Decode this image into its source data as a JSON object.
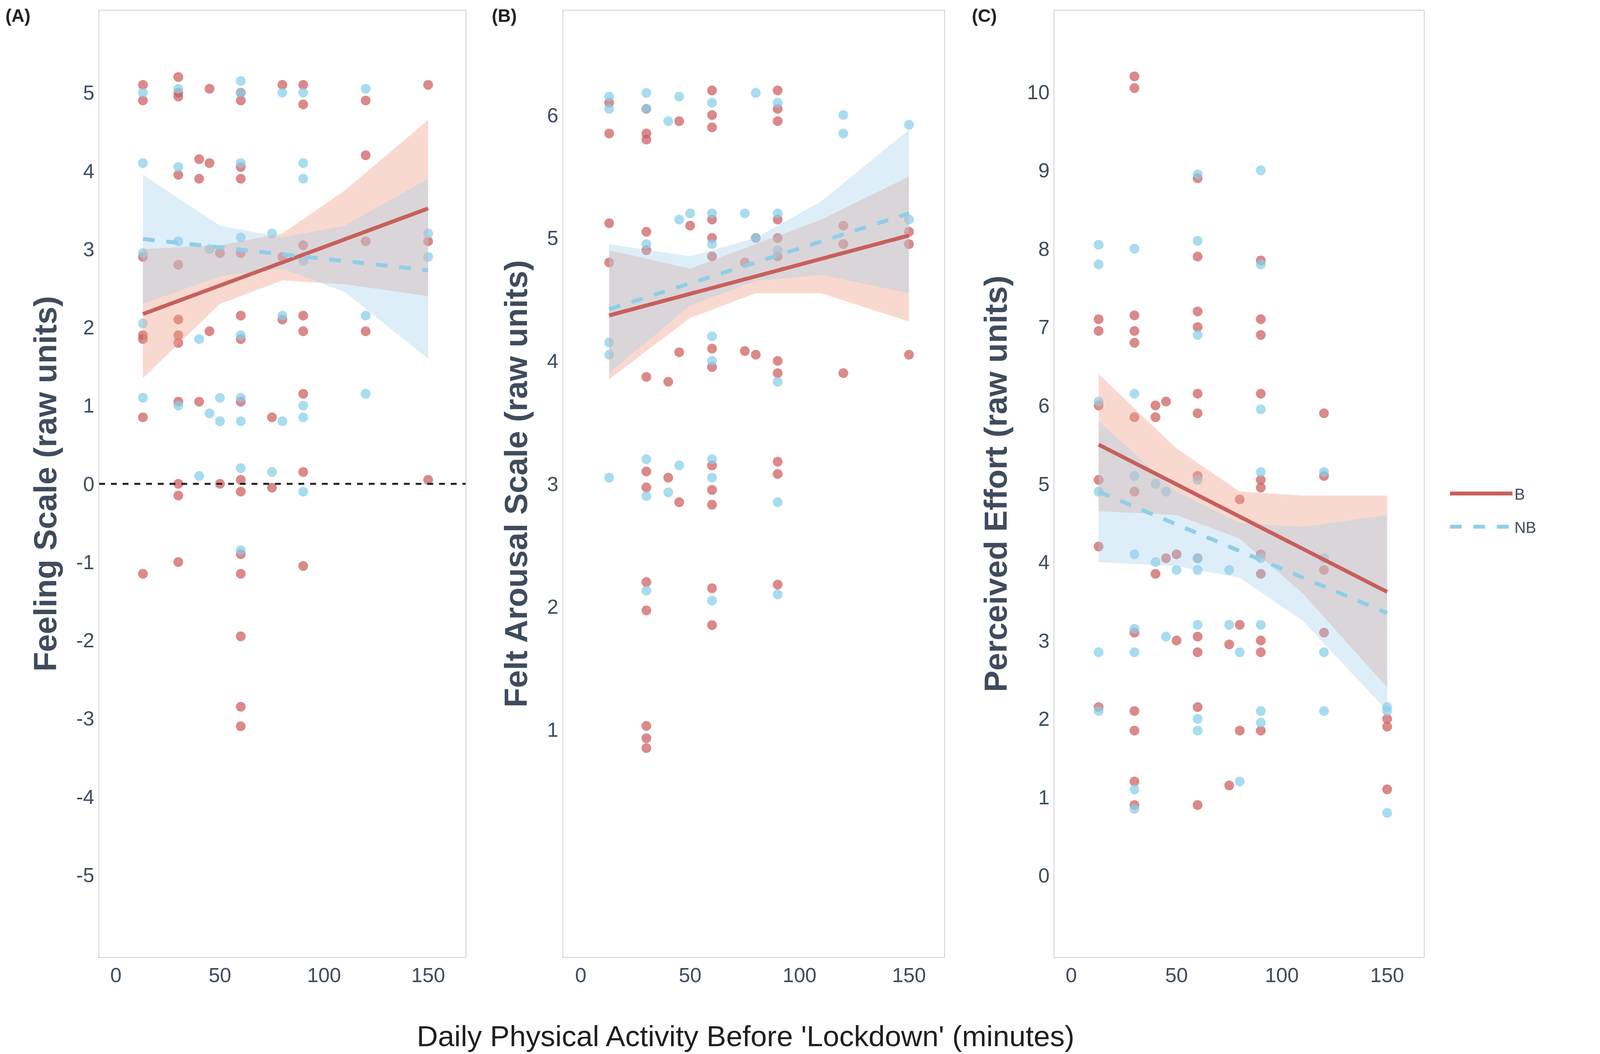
{
  "chart_data": [
    {
      "type": "scatter",
      "title": "(A)",
      "ylabel": "Feeling Scale (raw units)",
      "xlim": [
        -8,
        168
      ],
      "ylim": [
        -6.05,
        6.05
      ],
      "xticks": [
        0,
        50,
        100,
        150
      ],
      "yticks": [
        -5,
        -4,
        -3,
        -2,
        -1,
        0,
        1,
        2,
        3,
        4,
        5
      ],
      "grid": false,
      "reference_line": {
        "y": 0
      },
      "series": [
        {
          "name": "B",
          "color": "#cd5c5c",
          "line_style": "solid",
          "x": [
            13,
            13,
            13,
            13,
            13,
            13,
            13,
            30,
            30,
            30,
            30,
            30,
            30,
            30,
            30,
            30,
            30,
            30,
            30,
            40,
            40,
            40,
            45,
            45,
            45,
            50,
            50,
            60,
            60,
            60,
            60,
            60,
            60,
            60,
            60,
            60,
            60,
            60,
            60,
            60,
            60,
            60,
            75,
            75,
            80,
            80,
            80,
            90,
            90,
            90,
            90,
            90,
            90,
            90,
            90,
            120,
            120,
            120,
            120,
            150,
            150,
            150
          ],
          "y": [
            5.1,
            4.9,
            2.9,
            1.9,
            1.85,
            0.85,
            -1.15,
            5.2,
            5.0,
            4.95,
            3.95,
            2.8,
            2.1,
            1.9,
            1.8,
            1.05,
            0,
            -0.15,
            -1,
            4.15,
            3.9,
            1.05,
            5.05,
            4.1,
            1.95,
            2.95,
            0,
            5.0,
            4.9,
            4.05,
            3.9,
            2.95,
            2.15,
            1.85,
            1.05,
            0.05,
            -0.1,
            -0.9,
            -1.15,
            -1.95,
            -2.85,
            -3.1,
            -0.05,
            0.85,
            5.1,
            2.9,
            2.1,
            5.1,
            4.85,
            3.05,
            2.15,
            1.95,
            1.15,
            0.15,
            -1.05,
            4.9,
            4.2,
            3.1,
            1.95,
            5.1,
            3.1,
            0.05
          ],
          "fit": {
            "x": [
              13,
              150
            ],
            "y": [
              2.17,
              3.52
            ]
          },
          "ci": {
            "x": [
              13,
              50,
              80,
              110,
              150
            ],
            "lower": [
              1.35,
              2.3,
              2.6,
              2.55,
              2.4
            ],
            "upper": [
              3.0,
              3.05,
              3.2,
              3.75,
              4.65
            ]
          }
        },
        {
          "name": "NB",
          "color": "#87ceeb",
          "line_style": "dashed",
          "x": [
            13,
            13,
            13,
            13,
            13,
            30,
            30,
            30,
            30,
            40,
            40,
            45,
            45,
            50,
            50,
            60,
            60,
            60,
            60,
            60,
            60,
            60,
            60,
            60,
            75,
            75,
            80,
            80,
            80,
            90,
            90,
            90,
            90,
            90,
            90,
            90,
            120,
            120,
            120,
            150,
            150
          ],
          "y": [
            5.0,
            4.1,
            2.95,
            2.05,
            1.1,
            5.05,
            4.05,
            3.1,
            1.0,
            0.1,
            1.85,
            3.0,
            0.9,
            1.1,
            0.8,
            5.15,
            5.0,
            4.1,
            3.15,
            1.9,
            1.1,
            0.8,
            0.2,
            -0.85,
            3.2,
            0.15,
            5.0,
            2.15,
            0.8,
            5.0,
            4.1,
            3.9,
            2.85,
            1.0,
            0.85,
            -0.1,
            5.05,
            2.15,
            1.15,
            3.2,
            2.9
          ],
          "fit": {
            "x": [
              13,
              150
            ],
            "y": [
              3.13,
              2.73
            ]
          },
          "ci": {
            "x": [
              13,
              50,
              80,
              110,
              150
            ],
            "lower": [
              2.3,
              2.65,
              2.75,
              2.45,
              1.6
            ],
            "upper": [
              3.95,
              3.3,
              3.15,
              3.3,
              3.9
            ]
          }
        }
      ]
    },
    {
      "type": "scatter",
      "title": "(B)",
      "ylabel": "Felt Arousal Scale (raw units)",
      "xlim": [
        -8,
        166
      ],
      "ylim": [
        -0.85,
        6.85
      ],
      "xticks": [
        0,
        50,
        100,
        150
      ],
      "yticks": [
        1,
        2,
        3,
        4,
        5,
        6
      ],
      "grid": false,
      "series": [
        {
          "name": "B",
          "color": "#cd5c5c",
          "line_style": "solid",
          "x": [
            13,
            13,
            13,
            13,
            30,
            30,
            30,
            30,
            30,
            30,
            30,
            30,
            30,
            30,
            30,
            30,
            30,
            40,
            40,
            45,
            45,
            45,
            50,
            60,
            60,
            60,
            60,
            60,
            60,
            60,
            60,
            60,
            60,
            60,
            60,
            60,
            75,
            75,
            80,
            80,
            90,
            90,
            90,
            90,
            90,
            90,
            90,
            90,
            90,
            90,
            90,
            120,
            120,
            120,
            150,
            150,
            150
          ],
          "y": [
            6.1,
            5.85,
            5.12,
            4.8,
            6.05,
            5.85,
            5.8,
            5.05,
            4.9,
            3.87,
            3.1,
            2.97,
            2.2,
            1.97,
            1.03,
            0.93,
            0.85,
            3.83,
            3.05,
            5.95,
            4.07,
            2.85,
            5.1,
            6.2,
            6.0,
            5.9,
            5.15,
            5.0,
            4.85,
            4.1,
            3.95,
            3.15,
            2.95,
            2.83,
            2.15,
            1.85,
            4.8,
            4.08,
            5.0,
            4.05,
            6.2,
            6.05,
            5.95,
            5.15,
            5.0,
            4.85,
            4.0,
            3.9,
            3.18,
            3.08,
            2.18,
            5.1,
            4.95,
            3.9,
            5.05,
            4.95,
            4.05
          ],
          "fit": {
            "x": [
              13,
              150
            ],
            "y": [
              4.37,
              5.02
            ]
          },
          "ci": {
            "x": [
              13,
              50,
              80,
              110,
              150
            ],
            "lower": [
              3.85,
              4.35,
              4.55,
              4.55,
              4.32
            ],
            "upper": [
              4.9,
              4.75,
              4.95,
              5.15,
              5.5
            ]
          }
        },
        {
          "name": "NB",
          "color": "#87ceeb",
          "line_style": "dashed",
          "x": [
            13,
            13,
            13,
            13,
            13,
            30,
            30,
            30,
            30,
            30,
            30,
            40,
            40,
            45,
            45,
            45,
            50,
            60,
            60,
            60,
            60,
            60,
            60,
            60,
            60,
            75,
            80,
            80,
            90,
            90,
            90,
            90,
            90,
            90,
            120,
            120,
            150,
            150
          ],
          "y": [
            6.15,
            6.05,
            4.15,
            4.05,
            3.05,
            6.18,
            6.05,
            4.95,
            3.2,
            2.9,
            2.13,
            5.95,
            2.93,
            6.15,
            5.15,
            3.15,
            5.2,
            6.1,
            5.2,
            4.95,
            4.2,
            4.0,
            3.2,
            3.05,
            2.05,
            5.2,
            6.18,
            5.0,
            6.1,
            5.2,
            4.9,
            3.83,
            2.85,
            2.1,
            6.0,
            5.85,
            5.92,
            5.15
          ],
          "fit": {
            "x": [
              13,
              150
            ],
            "y": [
              4.42,
              5.2
            ]
          },
          "ci": {
            "x": [
              13,
              50,
              80,
              110,
              150
            ],
            "lower": [
              3.9,
              4.45,
              4.65,
              4.7,
              4.55
            ],
            "upper": [
              4.95,
              4.85,
              5.0,
              5.3,
              5.88
            ]
          }
        }
      ]
    },
    {
      "type": "scatter",
      "title": "(C)",
      "ylabel": "Perceived Effort (raw units)",
      "xlim": [
        -8,
        167.5
      ],
      "ylim": [
        -1.04,
        11.04
      ],
      "xticks": [
        0,
        50,
        100,
        150
      ],
      "yticks": [
        0,
        1,
        2,
        3,
        4,
        5,
        6,
        7,
        8,
        9,
        10
      ],
      "grid": false,
      "series": [
        {
          "name": "B",
          "color": "#cd5c5c",
          "line_style": "solid",
          "x": [
            13,
            13,
            13,
            13,
            13,
            13,
            30,
            30,
            30,
            30,
            30,
            30,
            30,
            30,
            30,
            30,
            30,
            30,
            40,
            40,
            40,
            45,
            45,
            50,
            50,
            60,
            60,
            60,
            60,
            60,
            60,
            60,
            60,
            60,
            60,
            60,
            60,
            75,
            75,
            80,
            80,
            80,
            90,
            90,
            90,
            90,
            90,
            90,
            90,
            90,
            90,
            90,
            90,
            120,
            120,
            120,
            120,
            150,
            150,
            150
          ],
          "y": [
            7.1,
            6.95,
            6.0,
            5.05,
            4.2,
            2.15,
            10.2,
            10.05,
            7.15,
            6.95,
            6.8,
            5.85,
            4.9,
            3.1,
            2.1,
            1.85,
            1.2,
            0.9,
            6.0,
            5.85,
            3.85,
            6.05,
            4.05,
            4.1,
            3.0,
            8.9,
            7.9,
            7.2,
            7.0,
            6.15,
            5.9,
            5.1,
            4.05,
            3.05,
            2.85,
            2.15,
            0.9,
            2.95,
            1.15,
            4.8,
            3.2,
            1.85,
            7.85,
            7.1,
            6.9,
            6.15,
            5.05,
            4.95,
            4.1,
            3.85,
            3.0,
            2.85,
            1.85,
            5.9,
            5.1,
            3.9,
            3.1,
            2.0,
            1.9,
            1.1
          ],
          "fit": {
            "x": [
              13,
              150
            ],
            "y": [
              5.5,
              3.62
            ]
          },
          "ci": {
            "x": [
              13,
              50,
              80,
              110,
              150
            ],
            "lower": [
              4.65,
              4.6,
              4.3,
              3.6,
              2.4
            ],
            "upper": [
              6.4,
              5.45,
              4.9,
              4.85,
              4.85
            ]
          }
        },
        {
          "name": "NB",
          "color": "#87ceeb",
          "line_style": "dashed",
          "x": [
            13,
            13,
            13,
            13,
            13,
            13,
            30,
            30,
            30,
            30,
            30,
            30,
            30,
            30,
            40,
            40,
            45,
            45,
            50,
            60,
            60,
            60,
            60,
            60,
            60,
            60,
            60,
            60,
            75,
            75,
            80,
            80,
            90,
            90,
            90,
            90,
            90,
            90,
            90,
            90,
            120,
            120,
            120,
            120,
            150,
            150,
            150
          ],
          "y": [
            8.05,
            7.8,
            6.05,
            4.9,
            2.85,
            2.1,
            8.0,
            6.15,
            5.1,
            4.1,
            3.15,
            2.85,
            1.1,
            0.85,
            5.0,
            4.0,
            4.9,
            3.05,
            3.9,
            8.95,
            8.1,
            6.9,
            5.05,
            4.05,
            3.9,
            3.2,
            2.0,
            1.85,
            3.9,
            3.2,
            2.85,
            1.2,
            9.0,
            7.8,
            5.95,
            5.15,
            4.05,
            3.2,
            2.1,
            1.95,
            5.15,
            4.05,
            2.85,
            2.1,
            2.15,
            2.1,
            0.8
          ],
          "fit": {
            "x": [
              13,
              150
            ],
            "y": [
              4.9,
              3.35
            ]
          },
          "ci": {
            "x": [
              13,
              50,
              80,
              110,
              150
            ],
            "lower": [
              4.0,
              3.95,
              3.8,
              3.25,
              2.1
            ],
            "upper": [
              5.8,
              4.9,
              4.5,
              4.45,
              4.6
            ]
          }
        }
      ]
    }
  ],
  "xlabel": "Daily Physical Activity Before 'Lockdown' (minutes)",
  "legend": "right"
}
